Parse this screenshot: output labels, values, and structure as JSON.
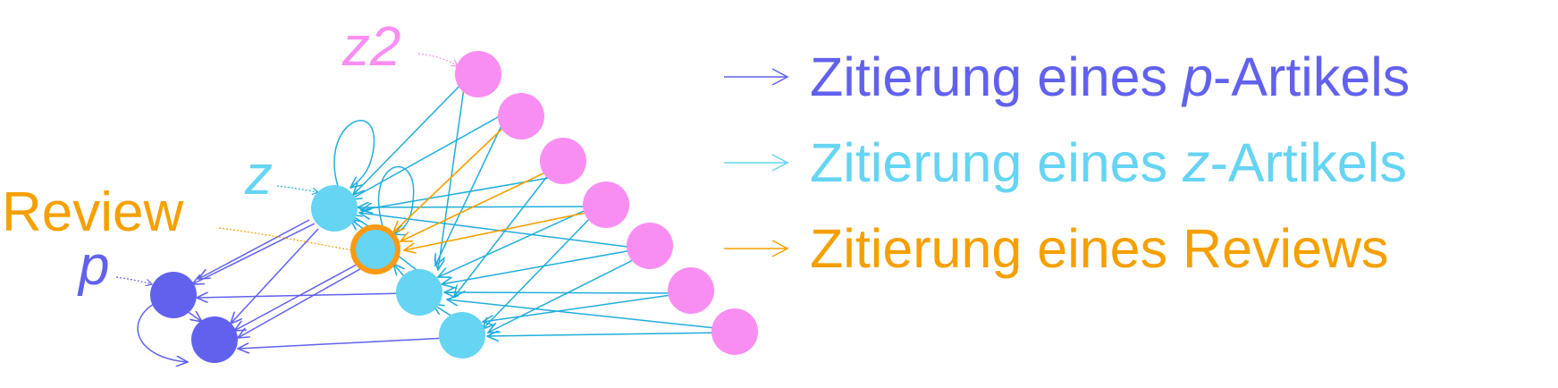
{
  "colors": {
    "p": "#6161ee",
    "z": "#66d4f3",
    "z_arrow": "#21addc",
    "z2": "#f98ef2",
    "review": "#f5a000",
    "review_ring": "#ff9a12",
    "review_inner": "#66d4f3"
  },
  "labels": {
    "z2": "z2",
    "z": "z",
    "review": "Review",
    "p": "p"
  },
  "legend": [
    {
      "pre": "Zitierung eines ",
      "italic": "p",
      "post": "-Artikels",
      "color_key": "p"
    },
    {
      "pre": "Zitierung eines ",
      "italic": "z",
      "post": "-Artikels",
      "color_key": "z"
    },
    {
      "pre": "Zitierung eines Reviews",
      "italic": "",
      "post": "",
      "color_key": "review"
    }
  ],
  "node_classes": [
    "p",
    "z",
    "z",
    "review",
    "z",
    "z",
    "p",
    "p",
    "z2",
    "z2",
    "z2",
    "z2",
    "z2",
    "z2",
    "z2"
  ],
  "edge_types": {
    "p_citations": 9,
    "z_citations": 22,
    "review_citations": 3
  }
}
